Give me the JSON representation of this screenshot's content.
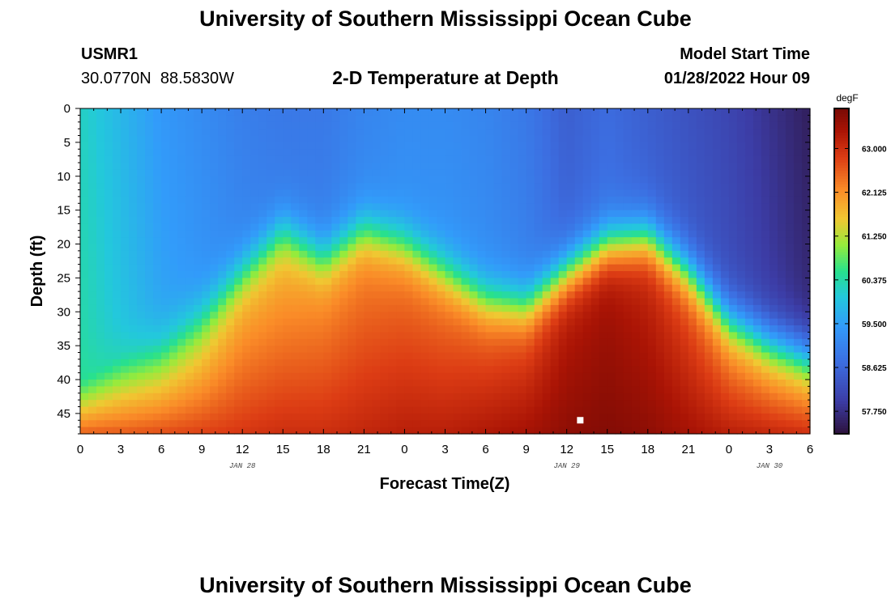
{
  "header": {
    "title": "University of Southern Mississippi Ocean Cube",
    "station_id": "USMR1",
    "coords": "30.0770N  88.5830W",
    "plot_title": "2-D Temperature at Depth",
    "start_label": "Model Start Time",
    "start_value": "01/28/2022 Hour 09",
    "bottom_title": "University of Southern Mississippi Ocean Cube"
  },
  "chart_data": {
    "type": "heatmap",
    "title": "2-D Temperature at Depth",
    "xlabel": "Forecast Time(Z)",
    "ylabel": "Depth (ft)",
    "x_range_hours": [
      0,
      54
    ],
    "y_range_ft": [
      0,
      48
    ],
    "x_tick_hours": [
      0,
      3,
      6,
      9,
      12,
      15,
      18,
      21,
      24,
      27,
      30,
      33,
      36,
      39,
      42,
      45,
      48,
      51,
      54
    ],
    "x_tick_labels": [
      "0",
      "3",
      "6",
      "9",
      "12",
      "15",
      "18",
      "21",
      "0",
      "3",
      "6",
      "9",
      "12",
      "15",
      "18",
      "21",
      "0",
      "3",
      "6"
    ],
    "date_labels": [
      {
        "hour": 12,
        "text": "JAN 28"
      },
      {
        "hour": 36,
        "text": "JAN 29"
      },
      {
        "hour": 51,
        "text": "JAN 30"
      }
    ],
    "y_ticks": [
      0,
      5,
      10,
      15,
      20,
      25,
      30,
      35,
      40,
      45
    ],
    "colorbar": {
      "unit": "degF",
      "range": [
        57.3,
        63.8
      ],
      "tick_values": [
        57.75,
        58.625,
        59.5,
        60.375,
        61.25,
        62.125,
        63.0
      ],
      "tick_labels": [
        "57.750",
        "58.625",
        "59.500",
        "60.375",
        "61.250",
        "62.125",
        "63.000"
      ]
    },
    "marker": {
      "hour": 37,
      "depth": 46
    },
    "columns": [
      {
        "hour": 0,
        "thermocline_depth": 40,
        "surface": 60.2,
        "mid": 60.6,
        "bottom": 62.6
      },
      {
        "hour": 3,
        "thermocline_depth": 36,
        "surface": 59.8,
        "mid": 60.5,
        "bottom": 62.6
      },
      {
        "hour": 6,
        "thermocline_depth": 34,
        "surface": 59.4,
        "mid": 60.6,
        "bottom": 62.7
      },
      {
        "hour": 9,
        "thermocline_depth": 30,
        "surface": 59.2,
        "mid": 61.0,
        "bottom": 62.8
      },
      {
        "hour": 12,
        "thermocline_depth": 24,
        "surface": 59.0,
        "mid": 61.6,
        "bottom": 62.9
      },
      {
        "hour": 15,
        "thermocline_depth": 18,
        "surface": 58.9,
        "mid": 61.6,
        "bottom": 63.0
      },
      {
        "hour": 18,
        "thermocline_depth": 22,
        "surface": 58.9,
        "mid": 61.9,
        "bottom": 63.0
      },
      {
        "hour": 21,
        "thermocline_depth": 18,
        "surface": 59.1,
        "mid": 62.1,
        "bottom": 63.1
      },
      {
        "hour": 24,
        "thermocline_depth": 20,
        "surface": 59.2,
        "mid": 62.2,
        "bottom": 63.2
      },
      {
        "hour": 27,
        "thermocline_depth": 24,
        "surface": 59.2,
        "mid": 62.2,
        "bottom": 63.2
      },
      {
        "hour": 30,
        "thermocline_depth": 28,
        "surface": 59.1,
        "mid": 62.3,
        "bottom": 63.3
      },
      {
        "hour": 33,
        "thermocline_depth": 29,
        "surface": 58.9,
        "mid": 62.5,
        "bottom": 63.4
      },
      {
        "hour": 36,
        "thermocline_depth": 24,
        "surface": 58.5,
        "mid": 63.1,
        "bottom": 63.6
      },
      {
        "hour": 39,
        "thermocline_depth": 20,
        "surface": 58.7,
        "mid": 63.3,
        "bottom": 63.7
      },
      {
        "hour": 42,
        "thermocline_depth": 19,
        "surface": 58.5,
        "mid": 63.0,
        "bottom": 63.6
      },
      {
        "hour": 45,
        "thermocline_depth": 24,
        "surface": 58.3,
        "mid": 62.5,
        "bottom": 63.4
      },
      {
        "hour": 48,
        "thermocline_depth": 31,
        "surface": 58.1,
        "mid": 61.9,
        "bottom": 63.2
      },
      {
        "hour": 51,
        "thermocline_depth": 34,
        "surface": 57.8,
        "mid": 61.5,
        "bottom": 63.1
      },
      {
        "hour": 54,
        "thermocline_depth": 36,
        "surface": 57.5,
        "mid": 61.2,
        "bottom": 63.0
      }
    ]
  }
}
